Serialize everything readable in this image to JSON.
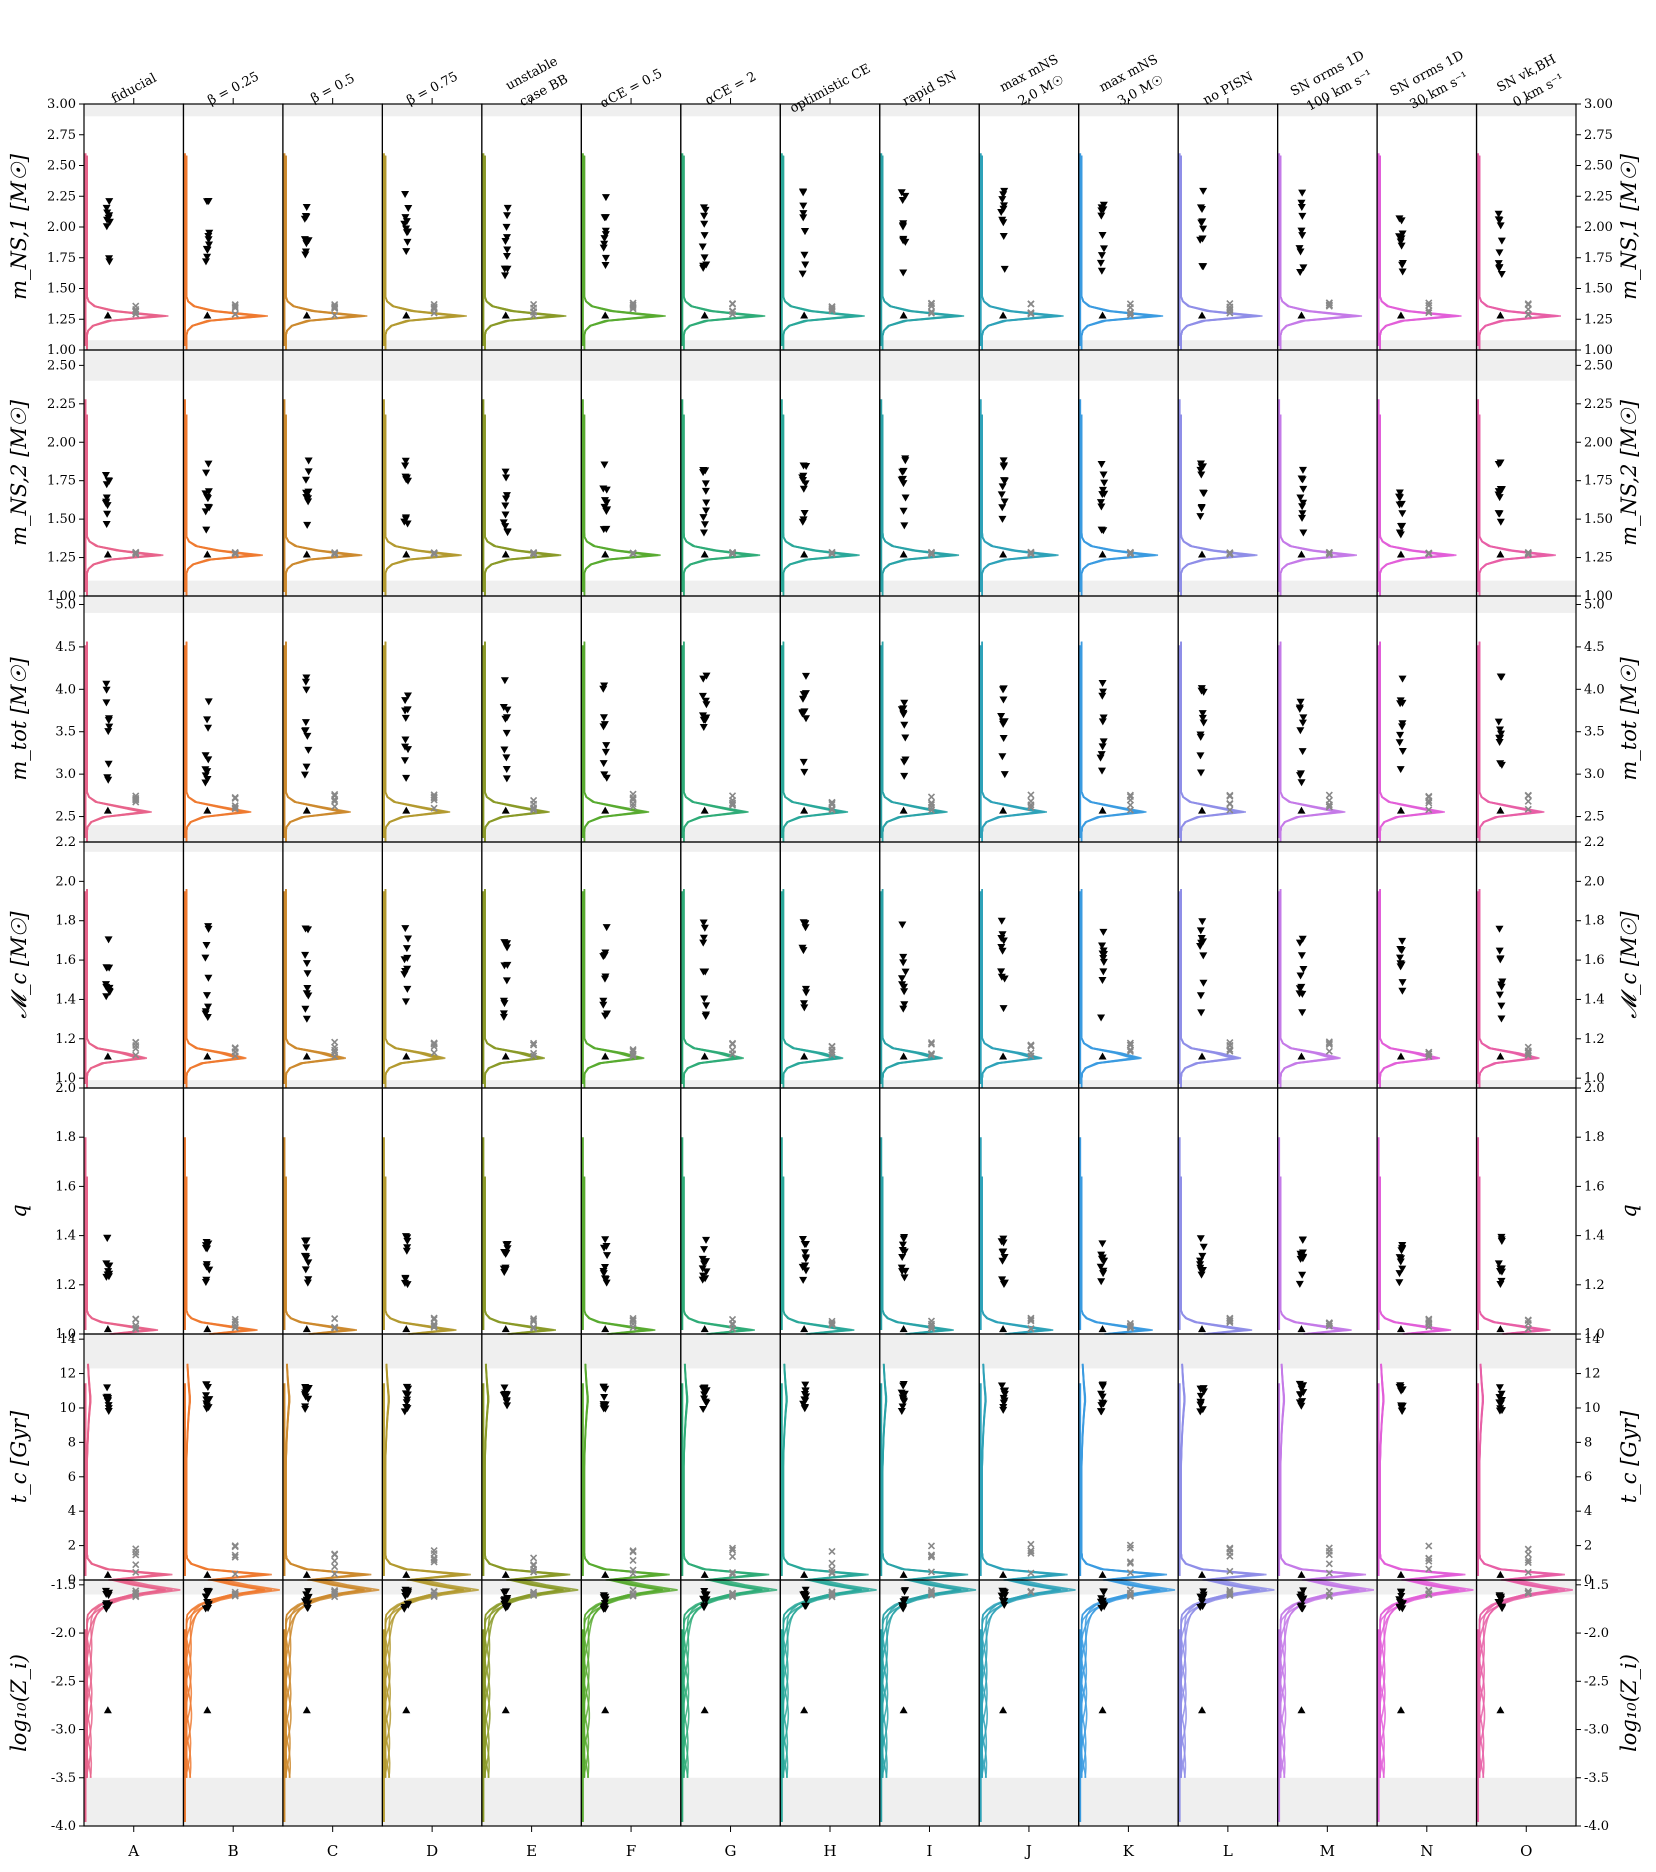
{
  "chart_data": {
    "type": "violin-grid",
    "columns": [
      {
        "letter": "A",
        "title": [
          "fiducial"
        ],
        "color": "#e8638b"
      },
      {
        "letter": "B",
        "title": [
          "β = 0.25"
        ],
        "color": "#ee7a30"
      },
      {
        "letter": "C",
        "title": [
          "β = 0.5"
        ],
        "color": "#cc8a2e"
      },
      {
        "letter": "D",
        "title": [
          "β = 0.75"
        ],
        "color": "#b39a30"
      },
      {
        "letter": "E",
        "title": [
          "unstable",
          "case BB"
        ],
        "color": "#8a9a28"
      },
      {
        "letter": "F",
        "title": [
          "αCE = 0.5"
        ],
        "color": "#58aa30"
      },
      {
        "letter": "G",
        "title": [
          "αCE = 2"
        ],
        "color": "#2fac78"
      },
      {
        "letter": "H",
        "title": [
          "optimistic CE"
        ],
        "color": "#2aa89a"
      },
      {
        "letter": "I",
        "title": [
          "rapid SN"
        ],
        "color": "#2aa3a8"
      },
      {
        "letter": "J",
        "title": [
          "max mNS",
          "2.0 M☉"
        ],
        "color": "#2ea2b8"
      },
      {
        "letter": "K",
        "title": [
          "max mNS",
          "3.0 M☉"
        ],
        "color": "#3b9be0"
      },
      {
        "letter": "L",
        "title": [
          "no PISN"
        ],
        "color": "#8f8ee8"
      },
      {
        "letter": "M",
        "title": [
          "SN σrms 1D",
          "100 km s⁻¹"
        ],
        "color": "#c47ae8"
      },
      {
        "letter": "N",
        "title": [
          "SN σrms 1D",
          "30 km s⁻¹"
        ],
        "color": "#e25fd8"
      },
      {
        "letter": "O",
        "title": [
          "SN vk,BH",
          "0 km s⁻¹"
        ],
        "color": "#e85fa6"
      }
    ],
    "rows": [
      {
        "label": "mNS,1 [M☉]",
        "ylim": [
          1.0,
          3.0
        ],
        "ticks": [
          "1.00",
          "1.25",
          "1.50",
          "1.75",
          "2.00",
          "2.25",
          "2.50",
          "2.75",
          "3.00"
        ],
        "tick_values": [
          1.0,
          1.25,
          1.5,
          1.75,
          2.0,
          2.25,
          2.5,
          2.75,
          3.0
        ],
        "shade": [
          [
            2.9,
            3.0
          ],
          [
            1.0,
            1.08
          ]
        ],
        "peak": 1.28,
        "up_lo": 1.6,
        "up_hi": 2.3,
        "mid": 1.35
      },
      {
        "label": "mNS,2 [M☉]",
        "ylim": [
          1.0,
          2.6
        ],
        "ticks": [
          "1.00",
          "1.25",
          "1.50",
          "1.75",
          "2.00",
          "2.25",
          "2.50"
        ],
        "tick_values": [
          1.0,
          1.25,
          1.5,
          1.75,
          2.0,
          2.25,
          2.5
        ],
        "shade": [
          [
            2.4,
            2.6
          ],
          [
            1.0,
            1.1
          ]
        ],
        "peak": 1.27,
        "up_lo": 1.4,
        "up_hi": 1.9,
        "mid": 1.28
      },
      {
        "label": "mtot [M☉]",
        "ylim": [
          2.2,
          5.1
        ],
        "ticks": [
          "2.5",
          "3.0",
          "3.5",
          "4.0",
          "4.5",
          "5.0"
        ],
        "tick_values": [
          2.5,
          3.0,
          3.5,
          4.0,
          4.5,
          5.0
        ],
        "shade": [
          [
            4.9,
            5.1
          ],
          [
            2.2,
            2.4
          ]
        ],
        "peak": 2.57,
        "up_lo": 2.9,
        "up_hi": 4.2,
        "mid": 2.7
      },
      {
        "label": "Mc [M☉]",
        "ylim": [
          0.95,
          2.2
        ],
        "ticks": [
          "1.0",
          "1.2",
          "1.4",
          "1.6",
          "1.8",
          "2.0",
          "2.2"
        ],
        "tick_values": [
          1.0,
          1.2,
          1.4,
          1.6,
          1.8,
          2.0,
          2.2
        ],
        "shade": [
          [
            2.15,
            2.2
          ],
          [
            0.95,
            0.99
          ]
        ],
        "peak": 1.11,
        "up_lo": 1.3,
        "up_hi": 1.8,
        "mid": 1.16
      },
      {
        "label": "q",
        "ylim": [
          1.0,
          2.0
        ],
        "ticks": [
          "1.0",
          "1.2",
          "1.4",
          "1.6",
          "1.8",
          "2.0"
        ],
        "tick_values": [
          1.0,
          1.2,
          1.4,
          1.6,
          1.8,
          2.0
        ],
        "shade": [],
        "peak": 1.02,
        "up_lo": 1.2,
        "up_hi": 1.4,
        "mid": 1.05
      },
      {
        "label": "tc [Gyr]",
        "ylim": [
          0,
          14.3
        ],
        "ticks": [
          "0",
          "2",
          "4",
          "6",
          "8",
          "10",
          "12",
          "14"
        ],
        "tick_values": [
          0,
          2,
          4,
          6,
          8,
          10,
          12,
          14
        ],
        "shade": [
          [
            12.3,
            14.3
          ]
        ],
        "peak": 0.3,
        "up_lo": 9.8,
        "up_hi": 11.4,
        "mid": 1.5
      },
      {
        "label": "log10(Zi)",
        "ylim": [
          -4.0,
          -1.45
        ],
        "ticks": [
          "-4.0",
          "-3.5",
          "-3.0",
          "-2.5",
          "-2.0",
          "-1.5"
        ],
        "tick_values": [
          -4.0,
          -3.5,
          -3.0,
          -2.5,
          -2.0,
          -1.5
        ],
        "shade": [
          [
            -1.45,
            -1.6
          ],
          [
            -3.5,
            -4.0
          ]
        ],
        "peak": -1.55,
        "up_lo": -1.55,
        "up_hi": -1.75,
        "mid": -1.6
      }
    ],
    "bottom_letters": [
      "A",
      "B",
      "C",
      "D",
      "E",
      "F",
      "G",
      "H",
      "I",
      "J",
      "K",
      "L",
      "M",
      "N",
      "O"
    ],
    "row_labels_display": [
      "m_NS,1 [M☉]",
      "m_NS,2 [M☉]",
      "m_tot [M☉]",
      "𝓜_c [M☉]",
      "q",
      "t_c [Gyr]",
      "log₁₀(Z_i)"
    ]
  }
}
